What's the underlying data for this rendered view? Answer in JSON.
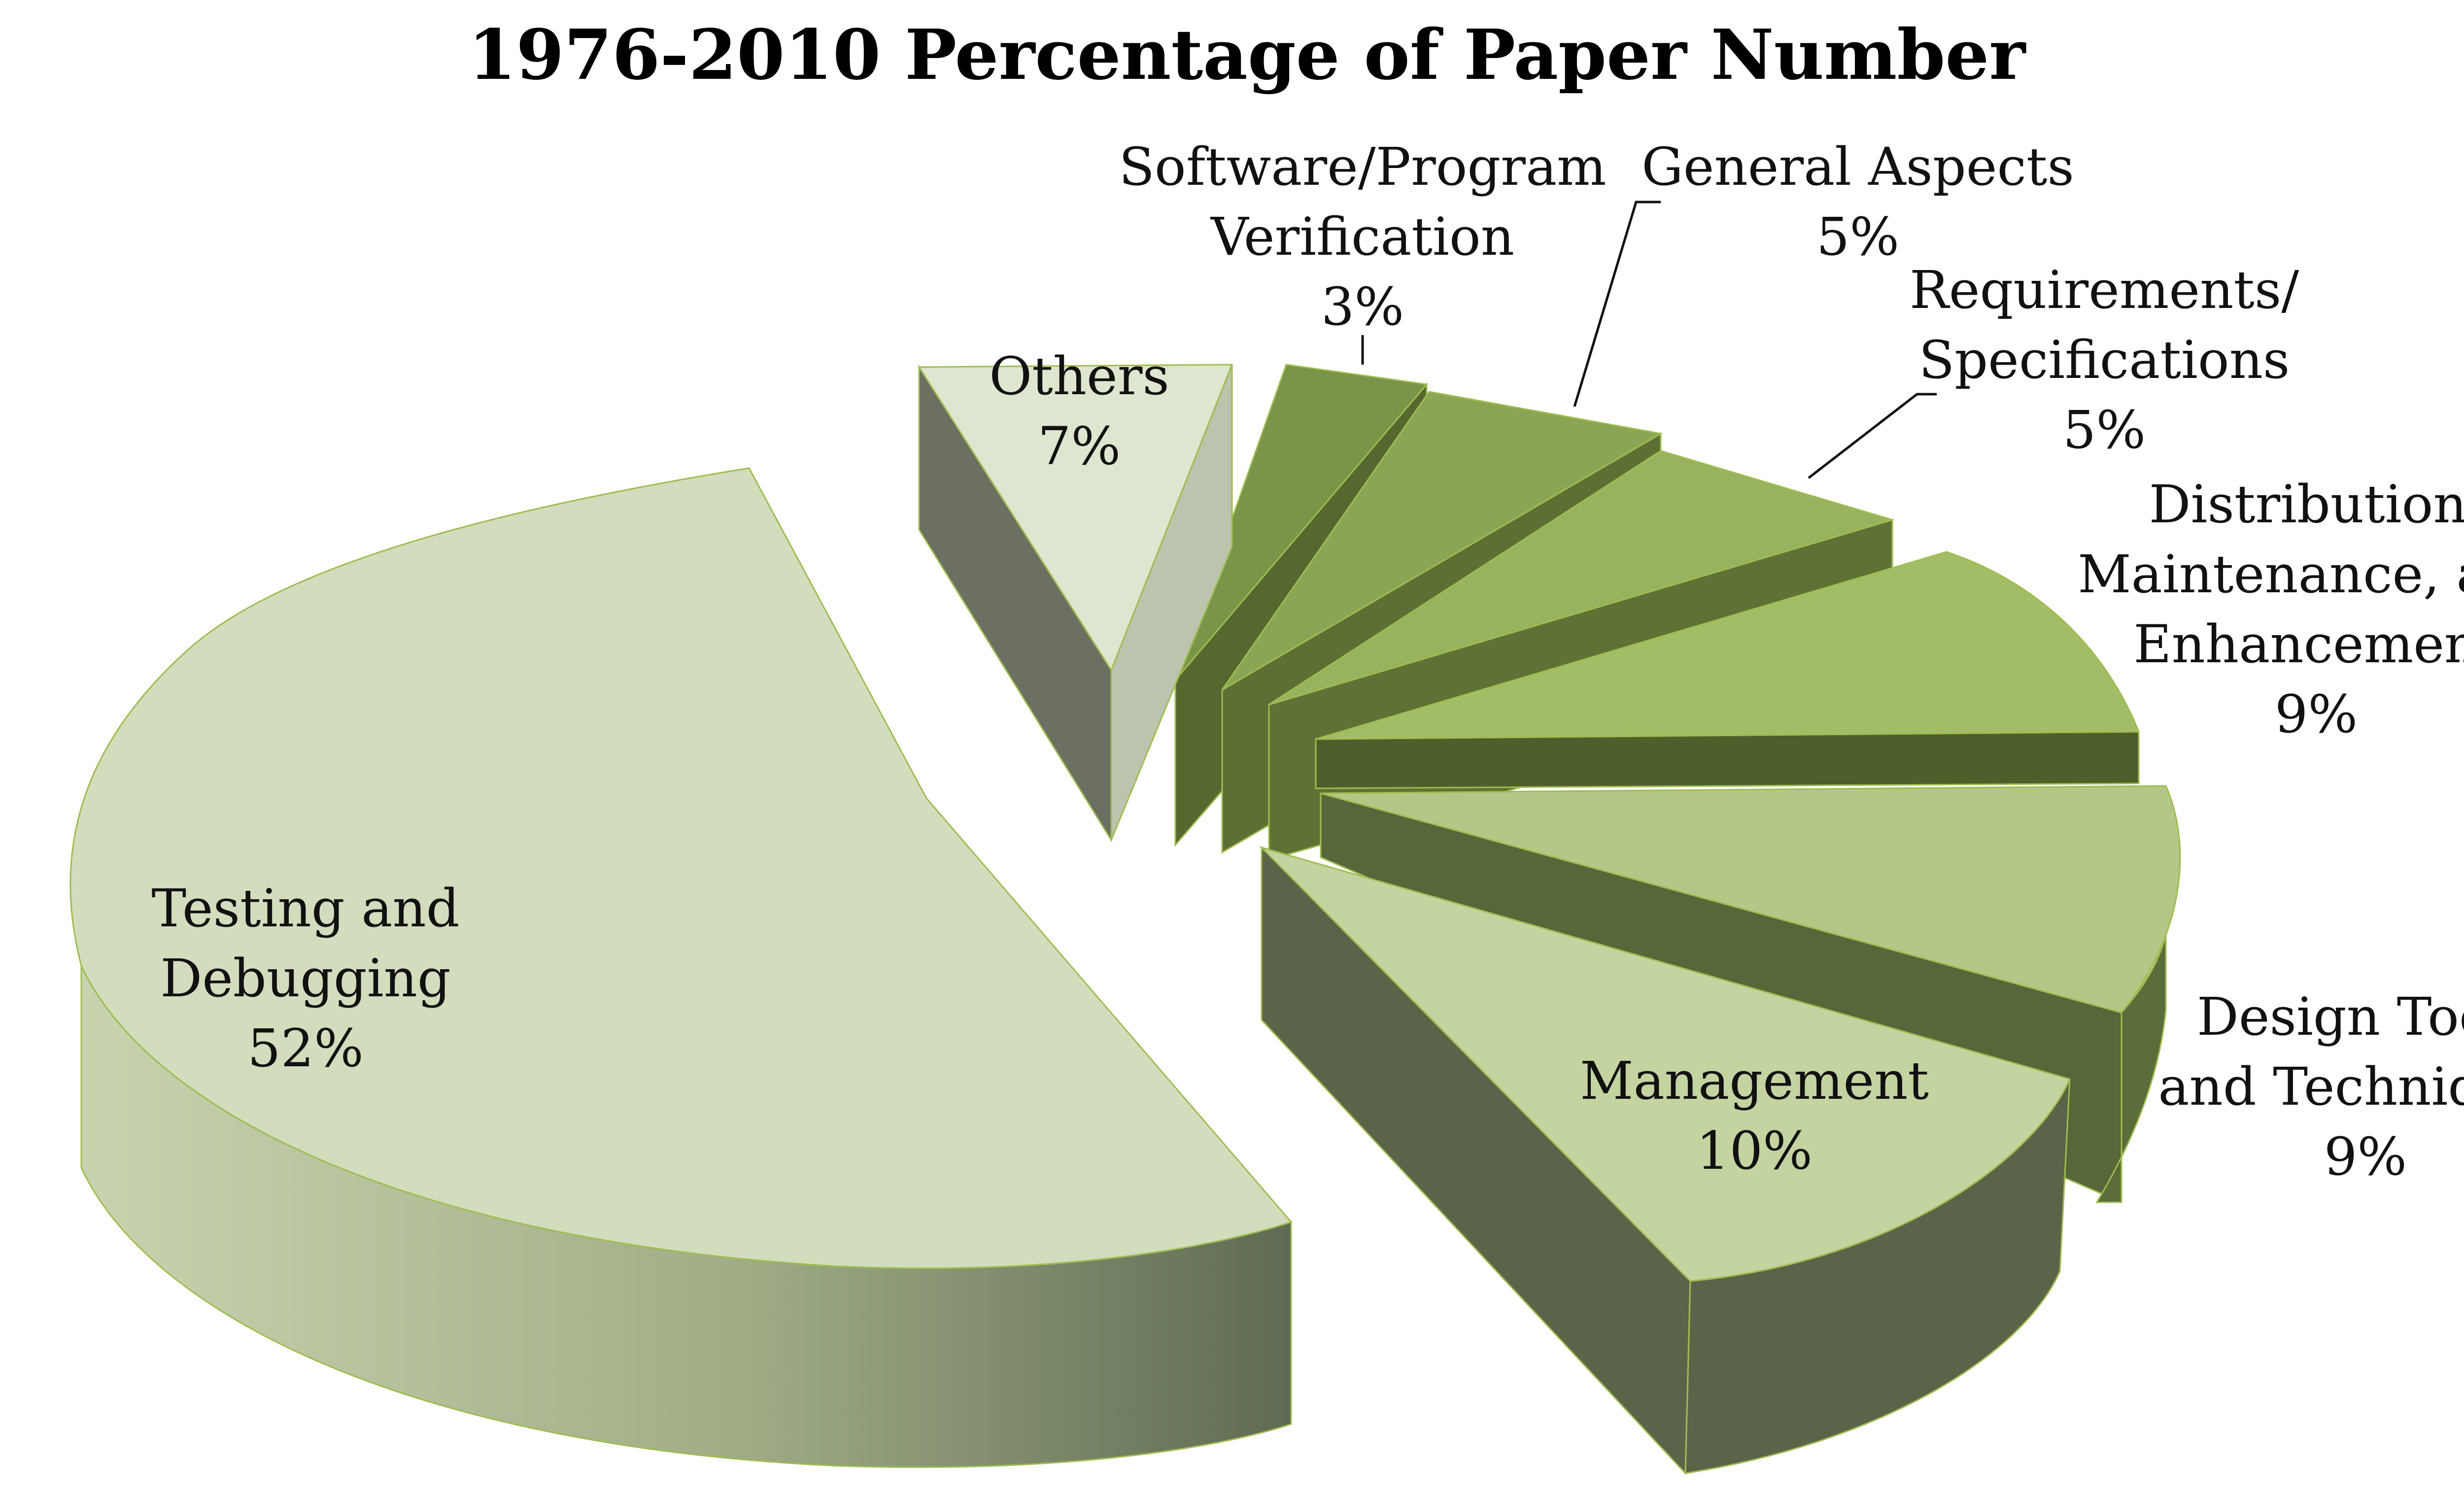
{
  "chart_data": {
    "type": "pie",
    "style": "3d-exploded",
    "title": "1976-2010 Percentage of Paper Number",
    "slices": [
      {
        "label_lines": [
          "Testing and",
          "Debugging"
        ],
        "percent_label": "52%",
        "value": 52,
        "color": "#d2ddbd"
      },
      {
        "label_lines": [
          "Others"
        ],
        "percent_label": "7%",
        "value": 7,
        "color": "#dde6cf"
      },
      {
        "label_lines": [
          "Software/Program",
          "Verification"
        ],
        "percent_label": "3%",
        "value": 3,
        "color": "#7a944a"
      },
      {
        "label_lines": [
          "General Aspects"
        ],
        "percent_label": "5%",
        "value": 5,
        "color": "#8ca554"
      },
      {
        "label_lines": [
          "Requirements/",
          "Specifications"
        ],
        "percent_label": "5%",
        "value": 5,
        "color": "#98b25d"
      },
      {
        "label_lines": [
          "Distribution,",
          "Maintenance, and",
          "Enhancement"
        ],
        "percent_label": "9%",
        "value": 9,
        "color": "#a3bd66"
      },
      {
        "label_lines": [
          "Design Tools",
          "and Techniques"
        ],
        "percent_label": "9%",
        "value": 9,
        "color": "#b3c886"
      },
      {
        "label_lines": [
          "Management"
        ],
        "percent_label": "10%",
        "value": 10,
        "color": "#c3d4a0"
      }
    ],
    "legend": "none"
  }
}
